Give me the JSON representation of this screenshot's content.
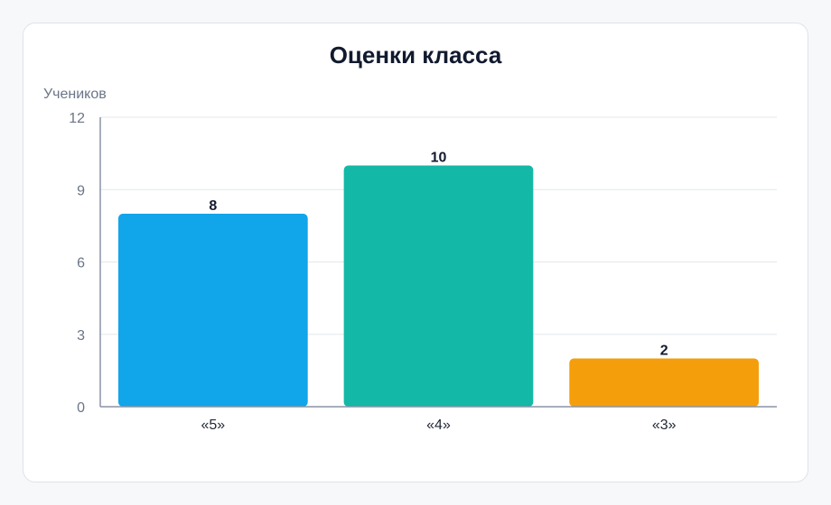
{
  "chart_data": {
    "type": "bar",
    "title": "Оценки класса",
    "xlabel": "",
    "ylabel": "Учеников",
    "categories": [
      "«5»",
      "«4»",
      "«3»"
    ],
    "values": [
      8,
      10,
      2
    ],
    "ylim": [
      0,
      12
    ],
    "yticks": [
      0,
      3,
      6,
      9,
      12
    ],
    "colors": [
      "#11a5e9",
      "#14b8a6",
      "#f59e0b"
    ],
    "grid": true,
    "legend": "none"
  }
}
